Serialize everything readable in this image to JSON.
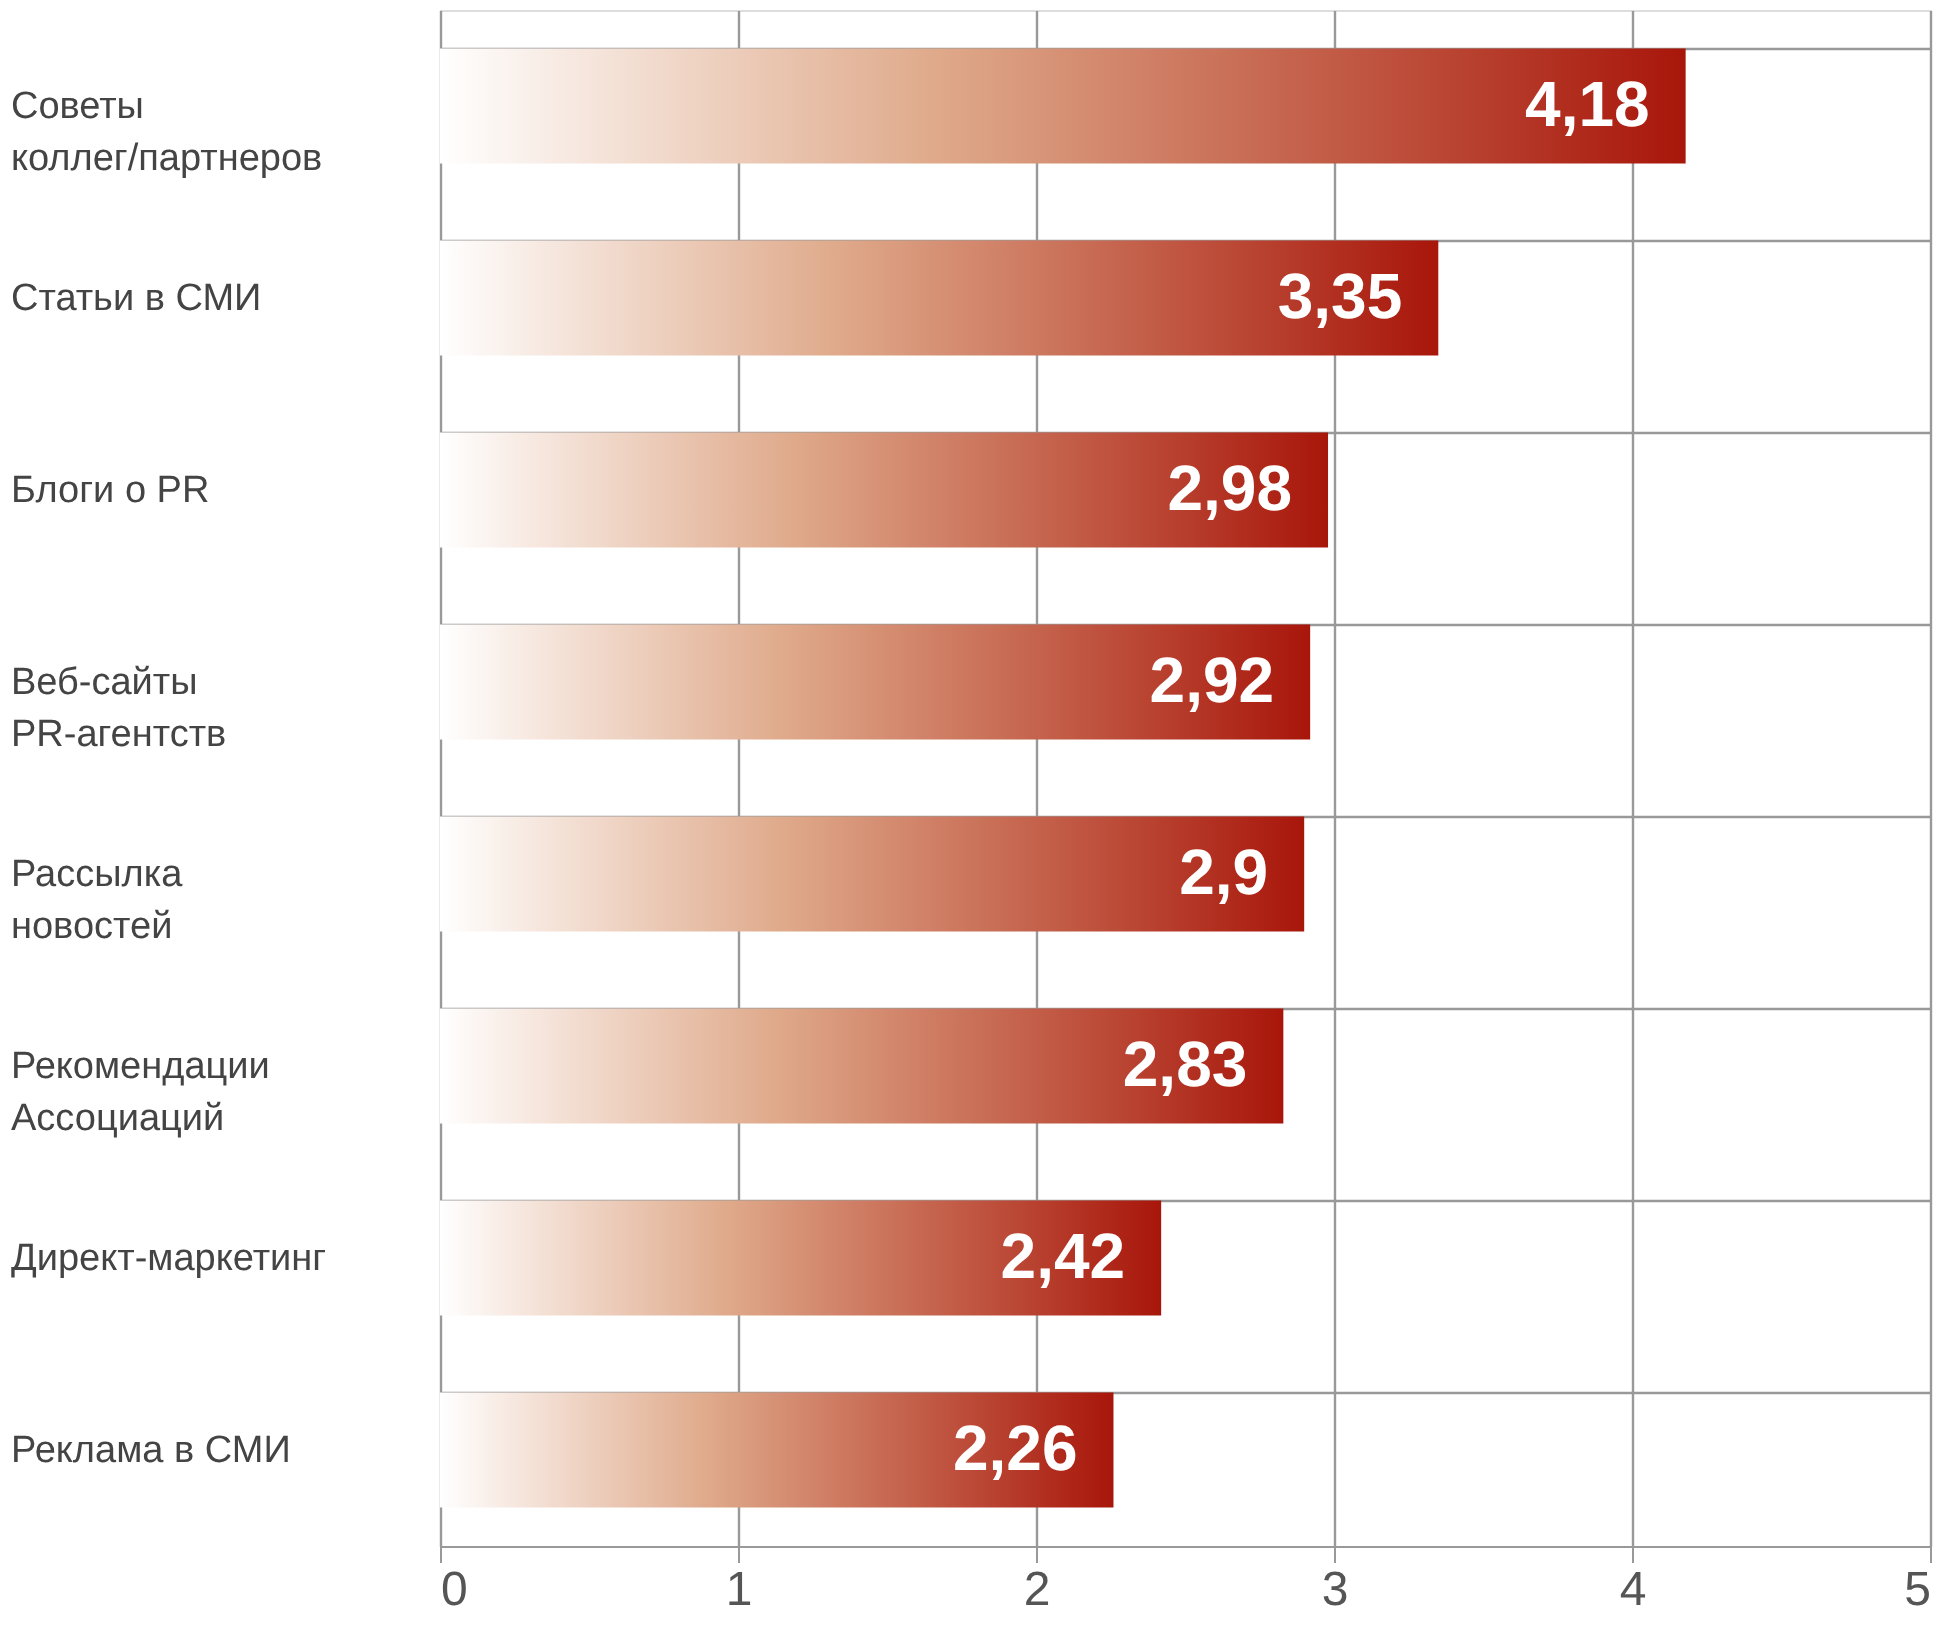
{
  "chart_data": {
    "type": "bar",
    "orientation": "horizontal",
    "categories": [
      "Советы\nколлег/партнеров",
      "Статьи в СМИ",
      "Блоги о PR",
      "Веб-сайты\nPR-агентств",
      "Рассылка\nновостей",
      "Рекомендации\nАссоциаций",
      "Директ-маркетинг",
      "Реклама в СМИ"
    ],
    "values": [
      4.18,
      3.35,
      2.98,
      2.92,
      2.9,
      2.83,
      2.42,
      2.26
    ],
    "value_labels": [
      "4,18",
      "3,35",
      "2,98",
      "2,92",
      "2,9",
      "2,83",
      "2,42",
      "2,26"
    ],
    "color": "#a8160a",
    "xlim": [
      0,
      5
    ],
    "xticks": [
      0,
      1,
      2,
      3,
      4,
      5
    ],
    "grid": true
  }
}
